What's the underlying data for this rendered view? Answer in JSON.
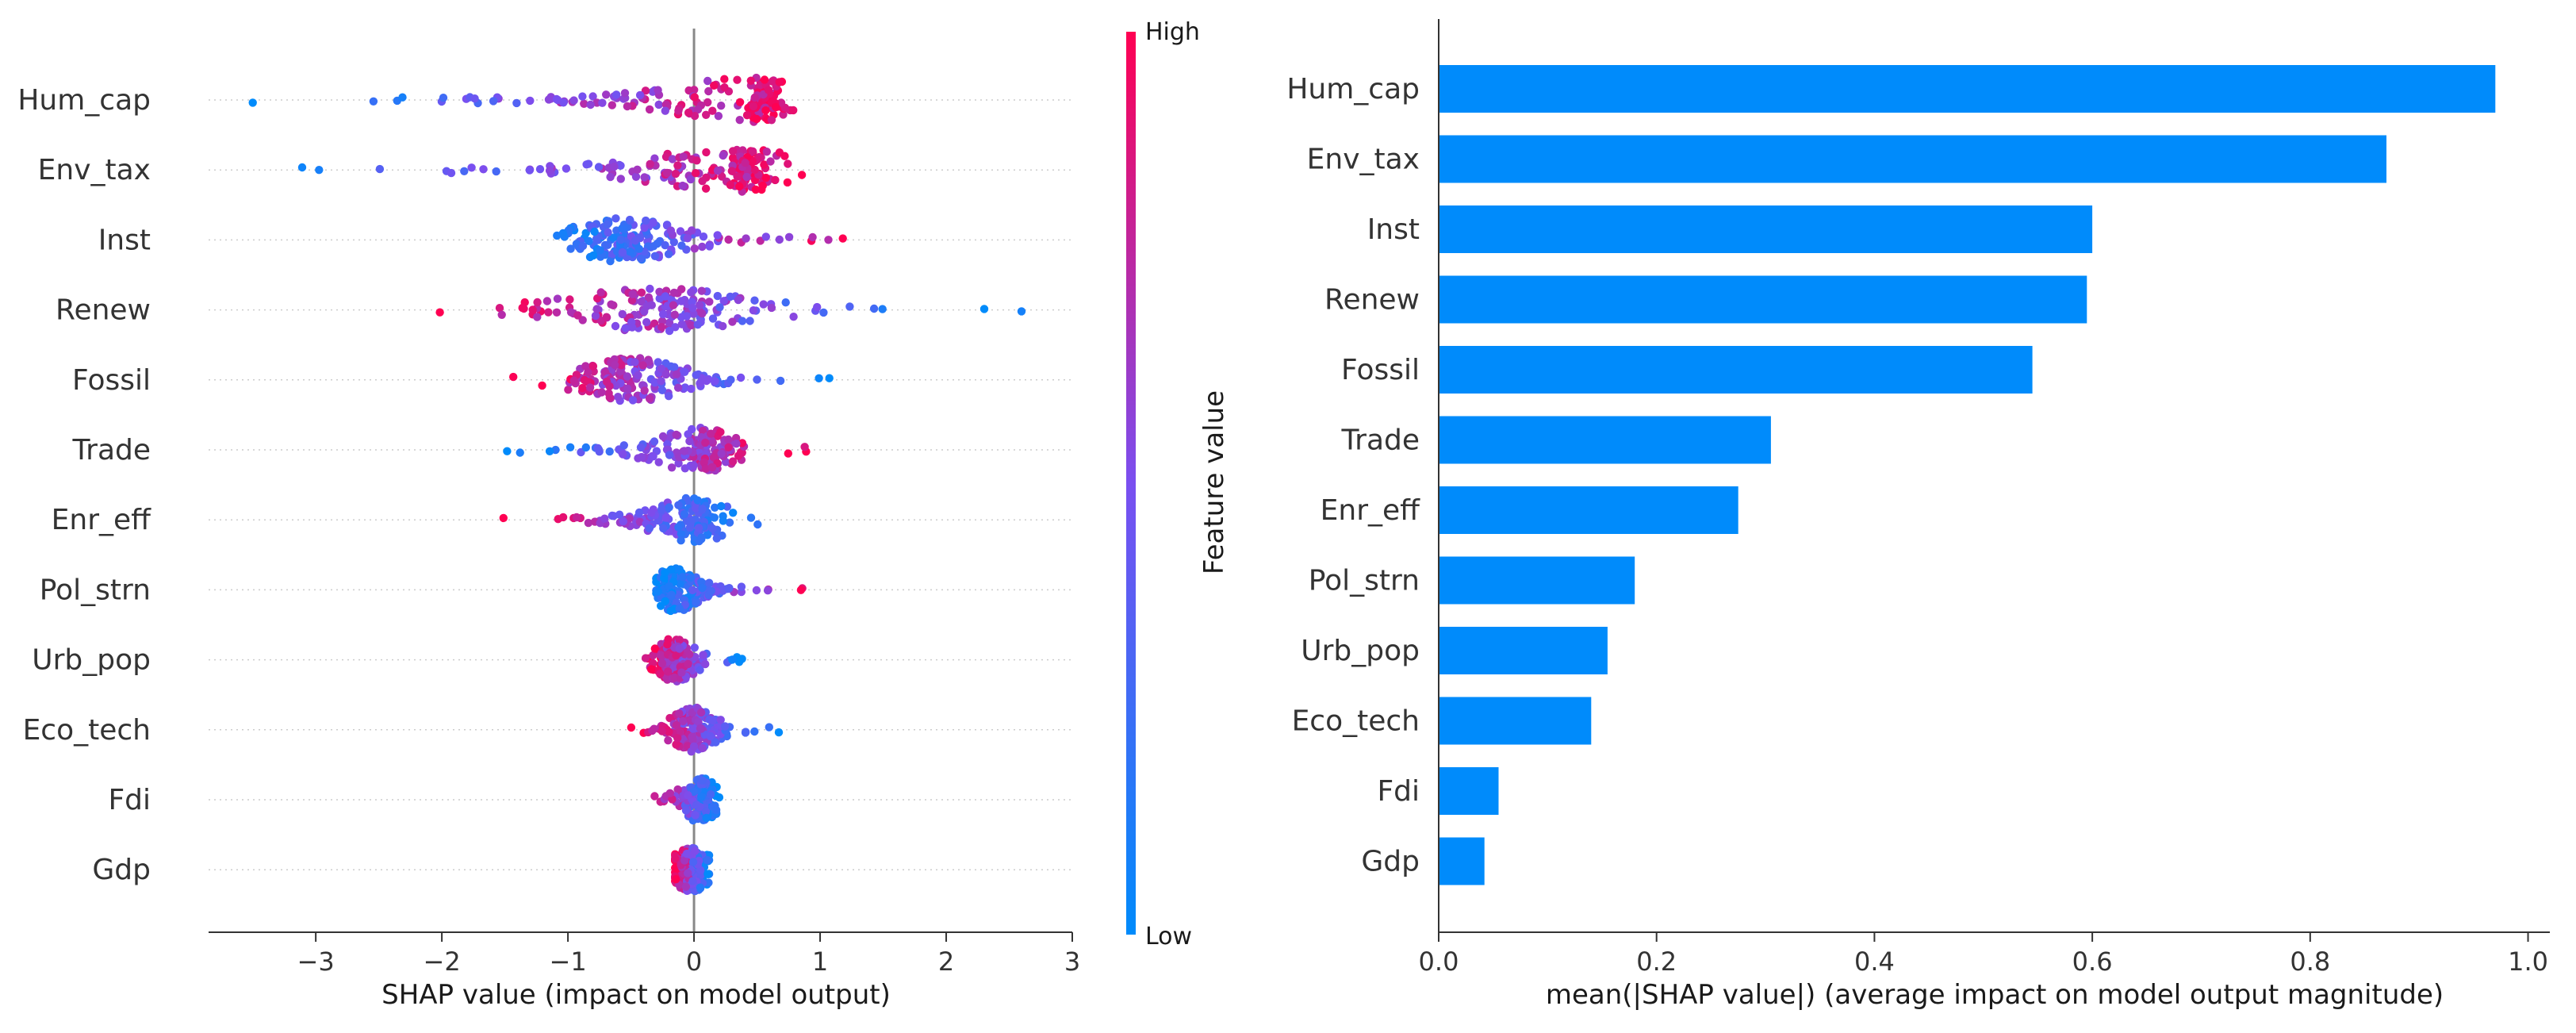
{
  "chart_data": [
    {
      "type": "beeswarm",
      "title": "",
      "xlabel": "SHAP value (impact on model output)",
      "ylabel": "",
      "xlim": [
        -3.85,
        3.0
      ],
      "xticks": [
        -3,
        -2,
        -1,
        0,
        1,
        2,
        3
      ],
      "xtick_labels": [
        "−3",
        "−2",
        "−1",
        "0",
        "1",
        "2",
        "3"
      ],
      "features": [
        "Hum_cap",
        "Env_tax",
        "Inst",
        "Renew",
        "Fossil",
        "Trade",
        "Enr_eff",
        "Pol_strn",
        "Urb_pop",
        "Eco_tech",
        "Fdi",
        "Gdp"
      ],
      "feature_shap_summary": [
        {
          "feature": "Hum_cap",
          "min": -3.5,
          "max": 1.05,
          "center": 0.45,
          "high_side": "positive"
        },
        {
          "feature": "Env_tax",
          "min": -3.5,
          "max": 1.15,
          "center": 0.3,
          "high_side": "positive"
        },
        {
          "feature": "Inst",
          "min": -1.4,
          "max": 1.5,
          "center": -0.55,
          "high_side": "positive"
        },
        {
          "feature": "Renew",
          "min": -2.1,
          "max": 2.7,
          "center": -0.3,
          "high_side": "negative"
        },
        {
          "feature": "Fossil",
          "min": -1.5,
          "max": 1.25,
          "center": -0.5,
          "high_side": "negative"
        },
        {
          "feature": "Trade",
          "min": -1.6,
          "max": 0.9,
          "center": 0.05,
          "high_side": "positive"
        },
        {
          "feature": "Enr_eff",
          "min": -1.55,
          "max": 0.65,
          "center": 0.0,
          "high_side": "negative"
        },
        {
          "feature": "Pol_strn",
          "min": -0.3,
          "max": 0.9,
          "center": -0.15,
          "high_side": "positive"
        },
        {
          "feature": "Urb_pop",
          "min": -0.4,
          "max": 0.45,
          "center": -0.15,
          "high_side": "negative"
        },
        {
          "feature": "Eco_tech",
          "min": -0.5,
          "max": 0.7,
          "center": 0.0,
          "high_side": "negative"
        },
        {
          "feature": "Fdi",
          "min": -0.35,
          "max": 0.2,
          "center": 0.05,
          "high_side": "negative"
        },
        {
          "feature": "Gdp",
          "min": -0.15,
          "max": 0.12,
          "center": -0.02,
          "high_side": "negative"
        }
      ],
      "colorbar": {
        "label": "Feature value",
        "high_label": "High",
        "low_label": "Low",
        "high_color": "#ff0052",
        "low_color": "#008bfb"
      },
      "zero_line": true
    },
    {
      "type": "bar",
      "orientation": "horizontal",
      "title": "",
      "xlabel": "mean(|SHAP value|) (average impact on model output magnitude)",
      "ylabel": "",
      "xlim": [
        0.0,
        1.02
      ],
      "xticks": [
        0.0,
        0.2,
        0.4,
        0.6,
        0.8,
        1.0
      ],
      "xtick_labels": [
        "0.0",
        "0.2",
        "0.4",
        "0.6",
        "0.8",
        "1.0"
      ],
      "categories": [
        "Hum_cap",
        "Env_tax",
        "Inst",
        "Renew",
        "Fossil",
        "Trade",
        "Enr_eff",
        "Pol_strn",
        "Urb_pop",
        "Eco_tech",
        "Fdi",
        "Gdp"
      ],
      "values": [
        0.97,
        0.87,
        0.6,
        0.595,
        0.545,
        0.305,
        0.275,
        0.18,
        0.155,
        0.14,
        0.055,
        0.042
      ],
      "bar_color": "#008bfb"
    }
  ]
}
